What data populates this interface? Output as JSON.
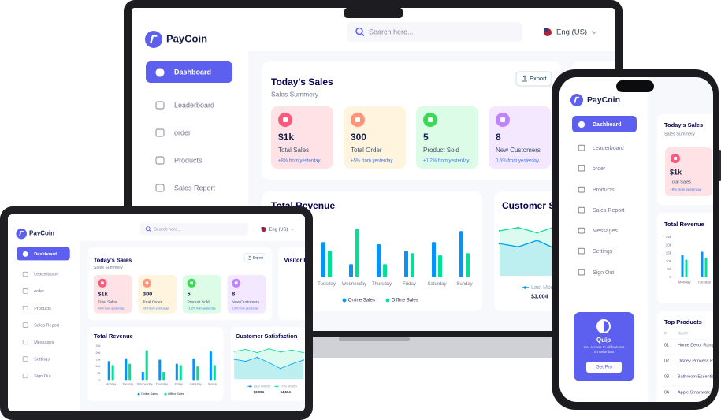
{
  "brand": "PayCoin",
  "search_placeholder": "Search here...",
  "language": "Eng (US)",
  "menu": [
    "Dashboard",
    "Leaderboard",
    "order",
    "Products",
    "Sales Report",
    "Messages",
    "Settings",
    "Sign Out"
  ],
  "sales": {
    "title": "Today's Sales",
    "subtitle": "Sales Summery",
    "export": "Export",
    "stats": [
      {
        "value": "$1k",
        "label": "Total Sales",
        "change": "+8% from yesterday"
      },
      {
        "value": "300",
        "label": "Total Order",
        "change": "+5% from yesterday"
      },
      {
        "value": "5",
        "label": "Product Sold",
        "change": "+1,2% from yesterday"
      },
      {
        "value": "8",
        "label": "New Customers",
        "change": "0,5% from yesterday"
      }
    ]
  },
  "visitor_title": "Visitor Insights",
  "revenue_chart": {
    "type": "bar",
    "title": "Total Revenue",
    "categories": [
      "Monday",
      "Tuesday",
      "Wednesday",
      "Thursday",
      "Friday",
      "Saturday",
      "Sunday"
    ],
    "series": [
      {
        "name": "Online Sales",
        "color": "#0095ff",
        "values": [
          14000,
          16000,
          6000,
          15000,
          12000,
          16000,
          21000
        ]
      },
      {
        "name": "Offline Sales",
        "color": "#00e096",
        "values": [
          11000,
          12000,
          22000,
          6000,
          11000,
          10000,
          11000
        ]
      }
    ],
    "ylim": [
      0,
      25000
    ],
    "yticks": [
      0,
      {
        "value": 5000,
        "label": "5k"
      },
      {
        "value": 10000,
        "label": "10k"
      },
      {
        "value": 15000,
        "label": "15k"
      },
      {
        "value": 20000,
        "label": "20k"
      },
      {
        "value": 25000,
        "label": "25k"
      }
    ]
  },
  "satisfaction_chart": {
    "type": "line",
    "title": "Customer Satisfaction",
    "series": [
      {
        "name": "Last Month",
        "color": "#0095ff",
        "values": [
          3.0,
          2.7,
          3.3,
          2.5,
          1.6,
          2.3,
          2.9
        ],
        "total": "$3,004"
      },
      {
        "name": "This Month",
        "color": "#07e098",
        "values": [
          4.2,
          4.5,
          4.0,
          4.6,
          4.1,
          4.4,
          4.0
        ],
        "total": "$4,504"
      }
    ],
    "ylim": [
      0,
      5
    ]
  },
  "top_products": {
    "title": "Top Products",
    "header": [
      "#",
      "Name"
    ],
    "rows": [
      [
        "01",
        "Home Decor Range"
      ],
      [
        "02",
        "Disney Princess Pink Bag"
      ],
      [
        "03",
        "Bathroom Essentials"
      ],
      [
        "04",
        "Apple Smartwatches"
      ]
    ]
  },
  "promo": {
    "title": "Quip",
    "text": "Get access to all features on tetumbas",
    "button": "Get Pro"
  }
}
